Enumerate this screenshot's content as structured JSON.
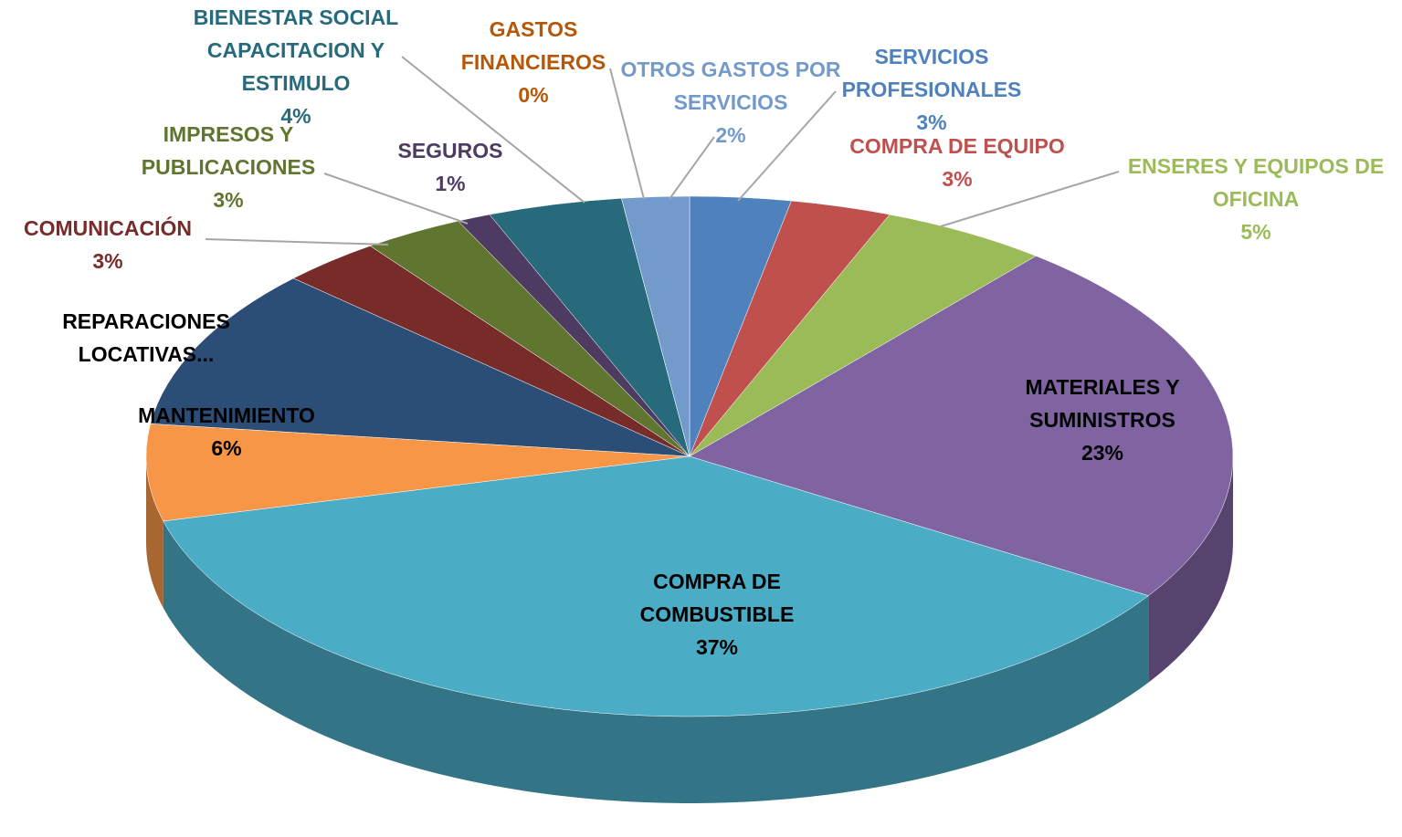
{
  "chart_data": {
    "type": "pie3d",
    "categories": [
      "SERVICIOS PROFESIONALES",
      "COMPRA DE EQUIPO",
      "ENSERES Y EQUIPOS DE OFICINA",
      "MATERIALES Y SUMINISTROS",
      "COMPRA DE COMBUSTIBLE",
      "MANTENIMIENTO",
      "REPARACIONES LOCATIVAS...",
      "COMUNICACIÓN",
      "IMPRESOS Y PUBLICACIONES",
      "SEGUROS",
      "BIENESTAR SOCIAL CAPACITACION Y ESTIMULO",
      "GASTOS FINANCIEROS",
      "OTROS GASTOS POR SERVICIOS"
    ],
    "values": [
      3,
      3,
      5,
      23,
      37,
      6,
      10,
      3,
      3,
      1,
      4,
      0,
      2
    ],
    "value_labels": [
      "3%",
      "3%",
      "5%",
      "23%",
      "37%",
      "6%",
      null,
      "3%",
      "3%",
      "1%",
      "4%",
      "0%",
      "2%"
    ],
    "colors": [
      "#4f81bd",
      "#c0504d",
      "#9bbb59",
      "#8064a2",
      "#4bacc6",
      "#f79646",
      "#2c4d75",
      "#772c2a",
      "#5f7530",
      "#4d3b62",
      "#276a7c",
      "#b65708",
      "#729aca"
    ]
  }
}
